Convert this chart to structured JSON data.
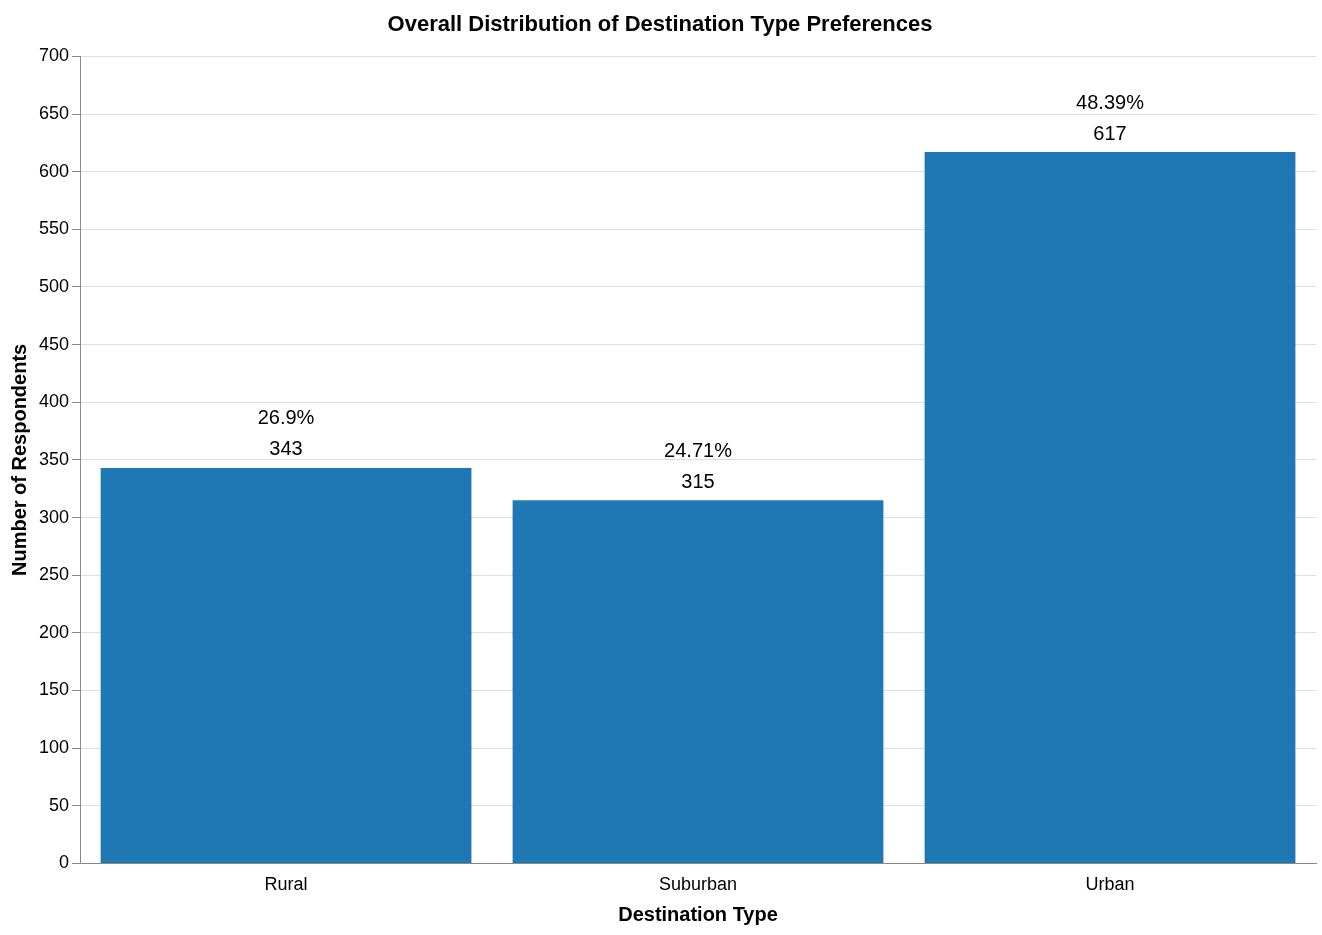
{
  "chart_data": {
    "type": "bar",
    "title": "Overall Distribution of Destination Type Preferences",
    "xlabel": "Destination Type",
    "ylabel": "Number of Respondents",
    "categories": [
      "Rural",
      "Suburban",
      "Urban"
    ],
    "values": [
      343,
      315,
      617
    ],
    "color": "#1f77b4",
    "ylim": [
      0,
      700
    ],
    "yticks": [
      0,
      50,
      100,
      150,
      200,
      250,
      300,
      350,
      400,
      450,
      500,
      550,
      600,
      650,
      700
    ],
    "grid": "y",
    "data_labels": true,
    "annotations": [
      {
        "text": "26.9%",
        "x": "Rural",
        "y": 343
      },
      {
        "text": "24.71%",
        "x": "Suburban",
        "y": 315
      },
      {
        "text": "48.39%",
        "x": "Urban",
        "y": 617
      }
    ]
  }
}
